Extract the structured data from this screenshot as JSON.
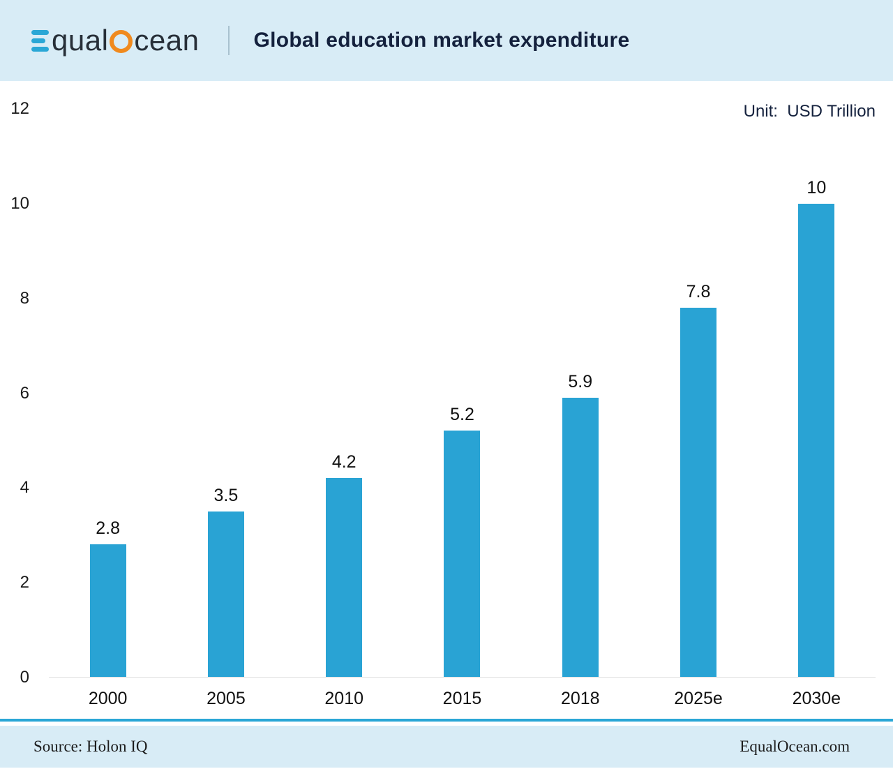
{
  "header": {
    "brand": {
      "part1": "qual",
      "part2": "cean"
    },
    "title": "Global education market expenditure"
  },
  "chart_data": {
    "type": "bar",
    "title": "Global education market expenditure",
    "unit_label": "Unit:  USD Trillion",
    "categories": [
      "2000",
      "2005",
      "2010",
      "2015",
      "2018",
      "2025e",
      "2030e"
    ],
    "values": [
      2.8,
      3.5,
      4.2,
      5.2,
      5.9,
      7.8,
      10
    ],
    "value_labels": [
      "2.8",
      "3.5",
      "4.2",
      "5.2",
      "5.9",
      "7.8",
      "10"
    ],
    "ylabel": "",
    "xlabel": "",
    "ylim": [
      0,
      12
    ],
    "yticks": [
      0,
      2,
      4,
      6,
      8,
      10,
      12
    ],
    "grid": false,
    "legend": "none",
    "bar_color": "#29a3d4"
  },
  "footer": {
    "source": "Source: Holon IQ",
    "site": "EqualOcean.com"
  }
}
